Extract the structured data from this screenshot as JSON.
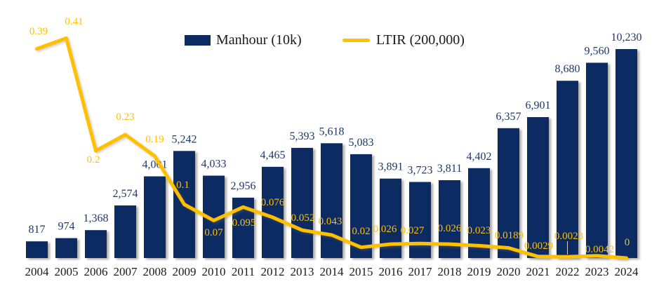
{
  "chart_data": {
    "type": "combo_bar_line",
    "title": "",
    "categories": [
      "2004",
      "2005",
      "2006",
      "2007",
      "2008",
      "2009",
      "2010",
      "2011",
      "2012",
      "2013",
      "2014",
      "2015",
      "2016",
      "2017",
      "2018",
      "2019",
      "2020",
      "2021",
      "2022",
      "2023",
      "2024"
    ],
    "series": [
      {
        "name": "Manhour (10k)",
        "type": "bar",
        "color": "#0d2b63",
        "values": [
          817,
          974,
          1368,
          2574,
          4001,
          5242,
          4033,
          2956,
          4465,
          5393,
          5618,
          5083,
          3891,
          3723,
          3811,
          4402,
          6357,
          6901,
          8680,
          9560,
          10230
        ],
        "labels": [
          "817",
          "974",
          "1,368",
          "2,574",
          "4,001",
          "5,242",
          "4,033",
          "2,956",
          "4,465",
          "5,393",
          "5,618",
          "5,083",
          "3,891",
          "3,723",
          "3,811",
          "4,402",
          "6,357",
          "6,901",
          "8,680",
          "9,560",
          "10,230"
        ]
      },
      {
        "name": "LTIR (200,000)",
        "type": "line",
        "color": "#ffc000",
        "values": [
          0.39,
          0.41,
          0.2,
          0.23,
          0.19,
          0.1,
          0.07,
          0.095,
          0.076,
          0.052,
          0.043,
          0.02,
          0.026,
          0.027,
          0.026,
          0.023,
          0.0189,
          0.0029,
          0.0023,
          0.0042,
          0
        ],
        "labels": [
          "0.39",
          "0.41",
          "0.2",
          "0.23",
          "0.19",
          "0.1",
          "0.07",
          "0.095",
          "0.076",
          "0.052",
          "0.043",
          "0.02",
          "0.026",
          "0.027",
          "0.026",
          "0.023",
          "0.0189",
          "0.0029",
          "0.0023",
          "0.0042",
          "0"
        ]
      }
    ],
    "xlabel": "",
    "ylabel": "",
    "y1lim": [
      0,
      10230
    ],
    "y2lim": [
      0,
      0.45
    ],
    "gridlines": false,
    "axes_visible": false,
    "legend_position": "top-center"
  },
  "colors": {
    "bar_fill": "#0d2b63",
    "bar_value_label": "#1f3864",
    "line_stroke": "#ffc000",
    "line_value_label": "#ffc000",
    "axis_label": "#1a1a1a",
    "leader_line": "#cccccc"
  }
}
